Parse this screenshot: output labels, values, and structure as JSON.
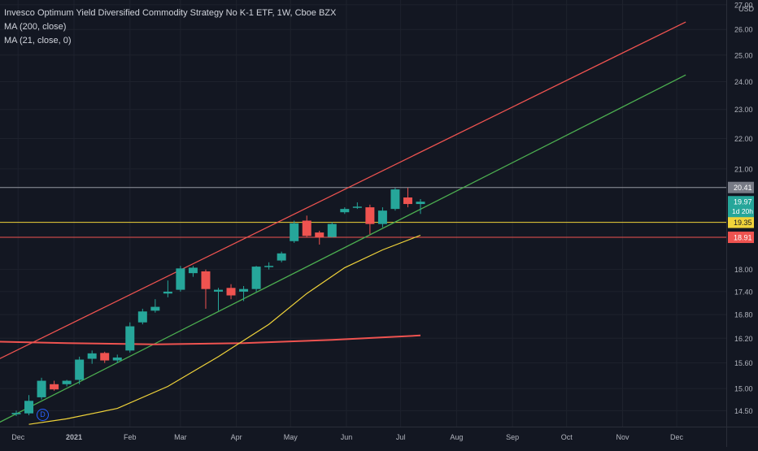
{
  "header": {
    "title": "Invesco Optimum Yield Diversified Commodity Strategy No K-1 ETF, 1W, Cboe BZX",
    "indicators": [
      "MA (200, close)",
      "MA (21, close, 0)"
    ]
  },
  "currency": "USD",
  "divider_icon": "dividend-marker-icon",
  "divider_label": "D",
  "colors": {
    "background": "#131722",
    "up": "#26a69a",
    "down": "#ef5350",
    "ma200": "#ef5350",
    "ma21": "#f0d33a",
    "channel_upper": "#ef5350",
    "channel_lower": "#4caf50",
    "hline_gray": "#9598a1",
    "hline_yellow": "#f0d33a",
    "hline_red": "#ef5350",
    "grid": "#1e222d",
    "text": "#b2b5be"
  },
  "chart_data": {
    "type": "candlestick",
    "title": "Invesco Optimum Yield Diversified Commodity Strategy No K-1 ETF, 1W, Cboe BZX",
    "x_ticks": [
      "Dec",
      "2021",
      "Feb",
      "Mar",
      "Apr",
      "May",
      "Jun",
      "Jul",
      "Aug",
      "Sep",
      "Oct",
      "Nov",
      "Dec"
    ],
    "y_ticks": [
      "14.50",
      "15.00",
      "15.60",
      "16.20",
      "16.80",
      "17.40",
      "18.00",
      "18.91",
      "19.35",
      "19.97",
      "20.41",
      "21.00",
      "22.00",
      "23.00",
      "24.00",
      "25.00",
      "26.00",
      "27.00"
    ],
    "y_scale": "log",
    "ylim": [
      14.15,
      27.2
    ],
    "grid": true,
    "candles": [
      {
        "date": "2020-11-30",
        "o": 14.42,
        "h": 14.5,
        "l": 14.38,
        "c": 14.45
      },
      {
        "date": "2020-12-07",
        "o": 14.44,
        "h": 14.85,
        "l": 14.4,
        "c": 14.72
      },
      {
        "date": "2020-12-14",
        "o": 14.8,
        "h": 15.25,
        "l": 14.75,
        "c": 15.18
      },
      {
        "date": "2020-12-21",
        "o": 15.1,
        "h": 15.18,
        "l": 14.95,
        "c": 14.98
      },
      {
        "date": "2020-12-28",
        "o": 15.1,
        "h": 15.2,
        "l": 15.05,
        "c": 15.18
      },
      {
        "date": "2021-01-04",
        "o": 15.2,
        "h": 15.75,
        "l": 15.1,
        "c": 15.68
      },
      {
        "date": "2021-01-11",
        "o": 15.7,
        "h": 15.9,
        "l": 15.58,
        "c": 15.83
      },
      {
        "date": "2021-01-18",
        "o": 15.84,
        "h": 15.87,
        "l": 15.6,
        "c": 15.66
      },
      {
        "date": "2021-01-25",
        "o": 15.66,
        "h": 15.8,
        "l": 15.6,
        "c": 15.73
      },
      {
        "date": "2021-02-01",
        "o": 15.9,
        "h": 16.6,
        "l": 15.85,
        "c": 16.5
      },
      {
        "date": "2021-02-08",
        "o": 16.6,
        "h": 16.95,
        "l": 16.55,
        "c": 16.88
      },
      {
        "date": "2021-02-15",
        "o": 16.9,
        "h": 17.2,
        "l": 16.85,
        "c": 17.0
      },
      {
        "date": "2021-02-22",
        "o": 17.35,
        "h": 17.7,
        "l": 17.25,
        "c": 17.4
      },
      {
        "date": "2021-03-01",
        "o": 17.45,
        "h": 18.1,
        "l": 17.4,
        "c": 18.03
      },
      {
        "date": "2021-03-08",
        "o": 17.9,
        "h": 18.1,
        "l": 17.8,
        "c": 18.05
      },
      {
        "date": "2021-03-15",
        "o": 17.95,
        "h": 18.0,
        "l": 16.95,
        "c": 17.47
      },
      {
        "date": "2021-03-22",
        "o": 17.4,
        "h": 17.5,
        "l": 16.9,
        "c": 17.45
      },
      {
        "date": "2021-03-29",
        "o": 17.5,
        "h": 17.6,
        "l": 17.2,
        "c": 17.3
      },
      {
        "date": "2021-04-05",
        "o": 17.4,
        "h": 17.55,
        "l": 17.15,
        "c": 17.47
      },
      {
        "date": "2021-04-12",
        "o": 17.47,
        "h": 18.1,
        "l": 17.4,
        "c": 18.08
      },
      {
        "date": "2021-04-19",
        "o": 18.1,
        "h": 18.2,
        "l": 18.0,
        "c": 18.1
      },
      {
        "date": "2021-04-26",
        "o": 18.25,
        "h": 18.5,
        "l": 18.2,
        "c": 18.45
      },
      {
        "date": "2021-05-03",
        "o": 18.8,
        "h": 19.4,
        "l": 18.75,
        "c": 19.32
      },
      {
        "date": "2021-05-10",
        "o": 19.4,
        "h": 19.55,
        "l": 18.9,
        "c": 18.95
      },
      {
        "date": "2021-05-17",
        "o": 19.05,
        "h": 19.1,
        "l": 18.7,
        "c": 18.92
      },
      {
        "date": "2021-05-24",
        "o": 18.92,
        "h": 19.35,
        "l": 18.9,
        "c": 19.3
      },
      {
        "date": "2021-05-31",
        "o": 19.65,
        "h": 19.8,
        "l": 19.6,
        "c": 19.75
      },
      {
        "date": "2021-06-07",
        "o": 19.8,
        "h": 19.95,
        "l": 19.75,
        "c": 19.82
      },
      {
        "date": "2021-06-14",
        "o": 19.8,
        "h": 19.88,
        "l": 19.0,
        "c": 19.3
      },
      {
        "date": "2021-06-21",
        "o": 19.3,
        "h": 19.8,
        "l": 19.2,
        "c": 19.7
      },
      {
        "date": "2021-06-28",
        "o": 19.75,
        "h": 20.4,
        "l": 19.7,
        "c": 20.35
      },
      {
        "date": "2021-07-05",
        "o": 20.1,
        "h": 20.4,
        "l": 19.8,
        "c": 19.9
      },
      {
        "date": "2021-07-12",
        "o": 19.9,
        "h": 20.05,
        "l": 19.6,
        "c": 19.97
      }
    ],
    "series": [
      {
        "name": "MA (200, close)",
        "points": [
          [
            "2020-11-16",
            16.12
          ],
          [
            "2020-12-28",
            16.08
          ],
          [
            "2021-02-15",
            16.05
          ],
          [
            "2021-04-05",
            16.08
          ],
          [
            "2021-05-24",
            16.16
          ],
          [
            "2021-07-12",
            16.27
          ]
        ]
      },
      {
        "name": "MA (21, close, 0)",
        "points": [
          [
            "2020-12-07",
            14.2
          ],
          [
            "2020-12-28",
            14.32
          ],
          [
            "2021-01-25",
            14.55
          ],
          [
            "2021-02-22",
            15.05
          ],
          [
            "2021-03-22",
            15.75
          ],
          [
            "2021-04-19",
            16.55
          ],
          [
            "2021-05-10",
            17.35
          ],
          [
            "2021-05-31",
            18.05
          ],
          [
            "2021-06-21",
            18.55
          ],
          [
            "2021-07-12",
            18.97
          ]
        ]
      }
    ],
    "trendlines": [
      {
        "color_key": "channel_upper",
        "from": [
          "2020-11-16",
          15.6
        ],
        "to": [
          "2021-12-06",
          26.3
        ]
      },
      {
        "color_key": "channel_lower",
        "from": [
          "2020-11-16",
          14.15
        ],
        "to": [
          "2021-12-06",
          24.25
        ]
      }
    ],
    "horizontal_lines": [
      {
        "value": 20.41,
        "color_key": "hline_gray",
        "label": "20.41",
        "label_bg": "#787b86"
      },
      {
        "value": 19.35,
        "color_key": "hline_yellow",
        "label": "19.35",
        "label_bg": "#f0d33a"
      },
      {
        "value": 18.91,
        "color_key": "hline_red",
        "label": "18.91",
        "label_bg": "#ef5350"
      }
    ],
    "last_price": {
      "value": 19.97,
      "label": "19.97",
      "countdown": "1d 20h"
    }
  }
}
